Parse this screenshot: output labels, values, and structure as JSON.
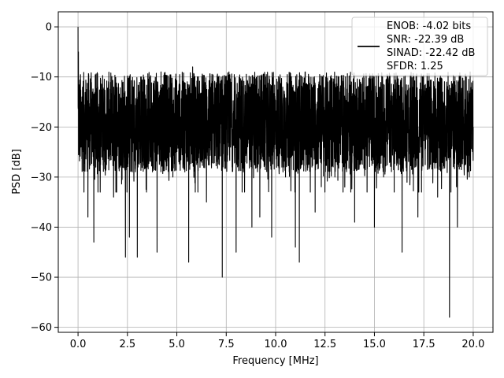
{
  "chart_data": {
    "type": "line",
    "title": "",
    "xlabel": "Frequency [MHz]",
    "ylabel": "PSD [dB]",
    "xlim": [
      -1.0,
      21.0
    ],
    "ylim": [
      -61.0,
      3.0
    ],
    "xticks": [
      0.0,
      2.5,
      5.0,
      7.5,
      10.0,
      12.5,
      15.0,
      17.5,
      20.0
    ],
    "xtick_labels": [
      "0.0",
      "2.5",
      "5.0",
      "7.5",
      "10.0",
      "12.5",
      "15.0",
      "17.5",
      "20.0"
    ],
    "yticks": [
      0,
      -10,
      -20,
      -30,
      -40,
      -50,
      -60
    ],
    "ytick_labels": [
      "0",
      "−10",
      "−20",
      "−30",
      "−40",
      "−50",
      "−60"
    ],
    "grid": true,
    "legend_position": "top-right",
    "series": [
      {
        "name": "",
        "color": "#000000",
        "description": "dense noise-like PSD trace, peak 0 dB at 0 MHz, mostly between -10 and -30 dB, deep dips to about -58 dB near 18.8 MHz",
        "x": [
          0.0,
          0.02,
          0.05,
          0.1,
          0.15,
          0.2,
          0.3,
          0.45,
          0.5,
          0.6,
          0.8,
          1.0,
          1.2,
          1.5,
          1.8,
          2.0,
          2.2,
          2.4,
          2.45,
          2.6,
          2.8,
          3.0,
          3.2,
          3.5,
          3.8,
          4.0,
          4.2,
          4.5,
          4.8,
          5.0,
          5.2,
          5.5,
          5.6,
          5.8,
          6.0,
          6.2,
          6.5,
          6.8,
          7.0,
          7.2,
          7.3,
          7.5,
          7.8,
          8.0,
          8.2,
          8.5,
          8.8,
          9.0,
          9.2,
          9.5,
          9.8,
          10.0,
          10.2,
          10.5,
          10.8,
          11.0,
          11.2,
          11.5,
          11.8,
          12.0,
          12.2,
          12.5,
          12.8,
          13.0,
          13.2,
          13.5,
          13.8,
          14.0,
          14.2,
          14.5,
          14.8,
          15.0,
          15.2,
          15.5,
          15.8,
          16.0,
          16.2,
          16.4,
          16.6,
          16.8,
          17.0,
          17.2,
          17.5,
          17.8,
          18.0,
          18.2,
          18.5,
          18.8,
          19.0,
          19.2,
          19.5,
          19.8,
          20.0
        ],
        "y": [
          0.0,
          -5.0,
          -12.0,
          -18.0,
          -24.0,
          -14.0,
          -33.0,
          -20.0,
          -38.0,
          -16.0,
          -43.0,
          -12.0,
          -26.0,
          -14.0,
          -34.0,
          -18.0,
          -22.0,
          -46.0,
          -14.0,
          -42.0,
          -12.0,
          -46.0,
          -10.0,
          -28.0,
          -20.0,
          -45.0,
          -9.0,
          -22.0,
          -30.0,
          -14.0,
          -18.0,
          -26.0,
          -47.0,
          -8.0,
          -24.0,
          -18.0,
          -35.0,
          -12.0,
          -24.0,
          -16.0,
          -50.0,
          -10.0,
          -28.0,
          -45.0,
          -14.0,
          -22.0,
          -40.0,
          -12.0,
          -38.0,
          -10.0,
          -42.0,
          -20.0,
          -11.0,
          -30.0,
          -16.0,
          -44.0,
          -47.0,
          -9.0,
          -26.0,
          -37.0,
          -14.0,
          -22.0,
          -18.0,
          -30.0,
          -10.0,
          -32.0,
          -24.0,
          -39.0,
          -12.0,
          -28.0,
          -20.0,
          -40.0,
          -14.0,
          -26.0,
          -18.0,
          -33.0,
          -12.0,
          -45.0,
          -22.0,
          -30.0,
          -10.0,
          -38.0,
          -16.0,
          -28.0,
          -12.0,
          -34.0,
          -24.0,
          -58.0,
          -14.0,
          -40.0,
          -18.0,
          -30.0,
          -20.0
        ]
      }
    ],
    "legend_lines": [
      "ENOB: -4.02 bits",
      "SNR: -22.39 dB",
      "SINAD: -22.42 dB",
      "SFDR: 1.25"
    ],
    "colors": {
      "line": "#000000",
      "grid": "#b0b0b0",
      "axes": "#000000",
      "background": "#ffffff"
    }
  }
}
